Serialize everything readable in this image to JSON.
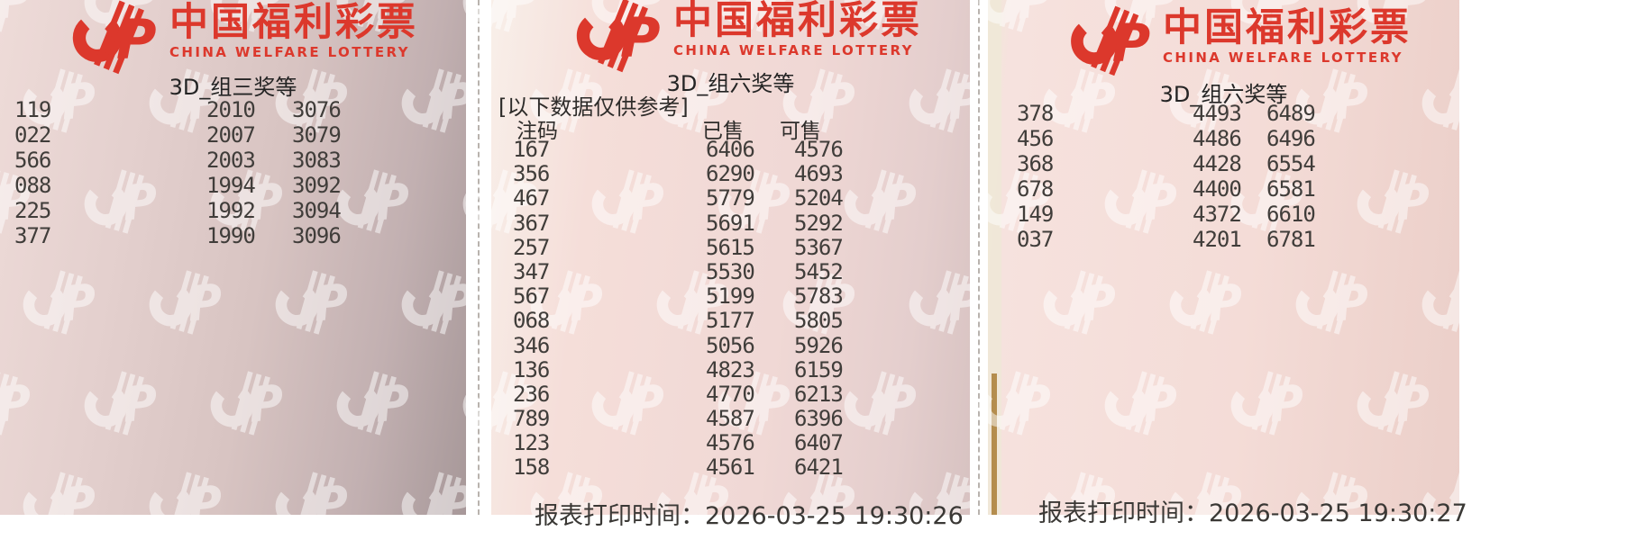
{
  "brand": {
    "name_cn": "中国福利彩票",
    "name_en": "CHINA WELFARE LOTTERY",
    "logo_color": "#dc382c",
    "logo_icon": "china-welfare-lottery-cp-logo"
  },
  "panels": [
    {
      "id": "left",
      "title": "3D_组三奖等",
      "rows": [
        [
          "119",
          "2010",
          "3076"
        ],
        [
          "022",
          "2007",
          "3079"
        ],
        [
          "566",
          "2003",
          "3083"
        ],
        [
          "088",
          "1994",
          "3092"
        ],
        [
          "225",
          "1992",
          "3094"
        ],
        [
          "377",
          "1990",
          "3096"
        ]
      ]
    },
    {
      "id": "middle",
      "title": "3D_组六奖等",
      "note": "[以下数据仅供参考]",
      "headers": [
        "注码",
        "已售",
        "可售"
      ],
      "rows": [
        [
          "167",
          "6406",
          "4576"
        ],
        [
          "356",
          "6290",
          "4693"
        ],
        [
          "467",
          "5779",
          "5204"
        ],
        [
          "367",
          "5691",
          "5292"
        ],
        [
          "257",
          "5615",
          "5367"
        ],
        [
          "347",
          "5530",
          "5452"
        ],
        [
          "567",
          "5199",
          "5783"
        ],
        [
          "068",
          "5177",
          "5805"
        ],
        [
          "346",
          "5056",
          "5926"
        ],
        [
          "136",
          "4823",
          "6159"
        ],
        [
          "236",
          "4770",
          "6213"
        ],
        [
          "789",
          "4587",
          "6396"
        ],
        [
          "123",
          "4576",
          "6407"
        ],
        [
          "158",
          "4561",
          "6421"
        ]
      ],
      "footer": "报表打印时间：2026-03-25 19:30:26"
    },
    {
      "id": "right",
      "title": "3D_组六奖等",
      "rows": [
        [
          "378",
          "4493",
          "6489"
        ],
        [
          "456",
          "4486",
          "6496"
        ],
        [
          "368",
          "4428",
          "6554"
        ],
        [
          "678",
          "4400",
          "6581"
        ],
        [
          "149",
          "4372",
          "6610"
        ],
        [
          "037",
          "4201",
          "6781"
        ]
      ],
      "footer": "报表打印时间：2026-03-25 19:30:27"
    }
  ]
}
